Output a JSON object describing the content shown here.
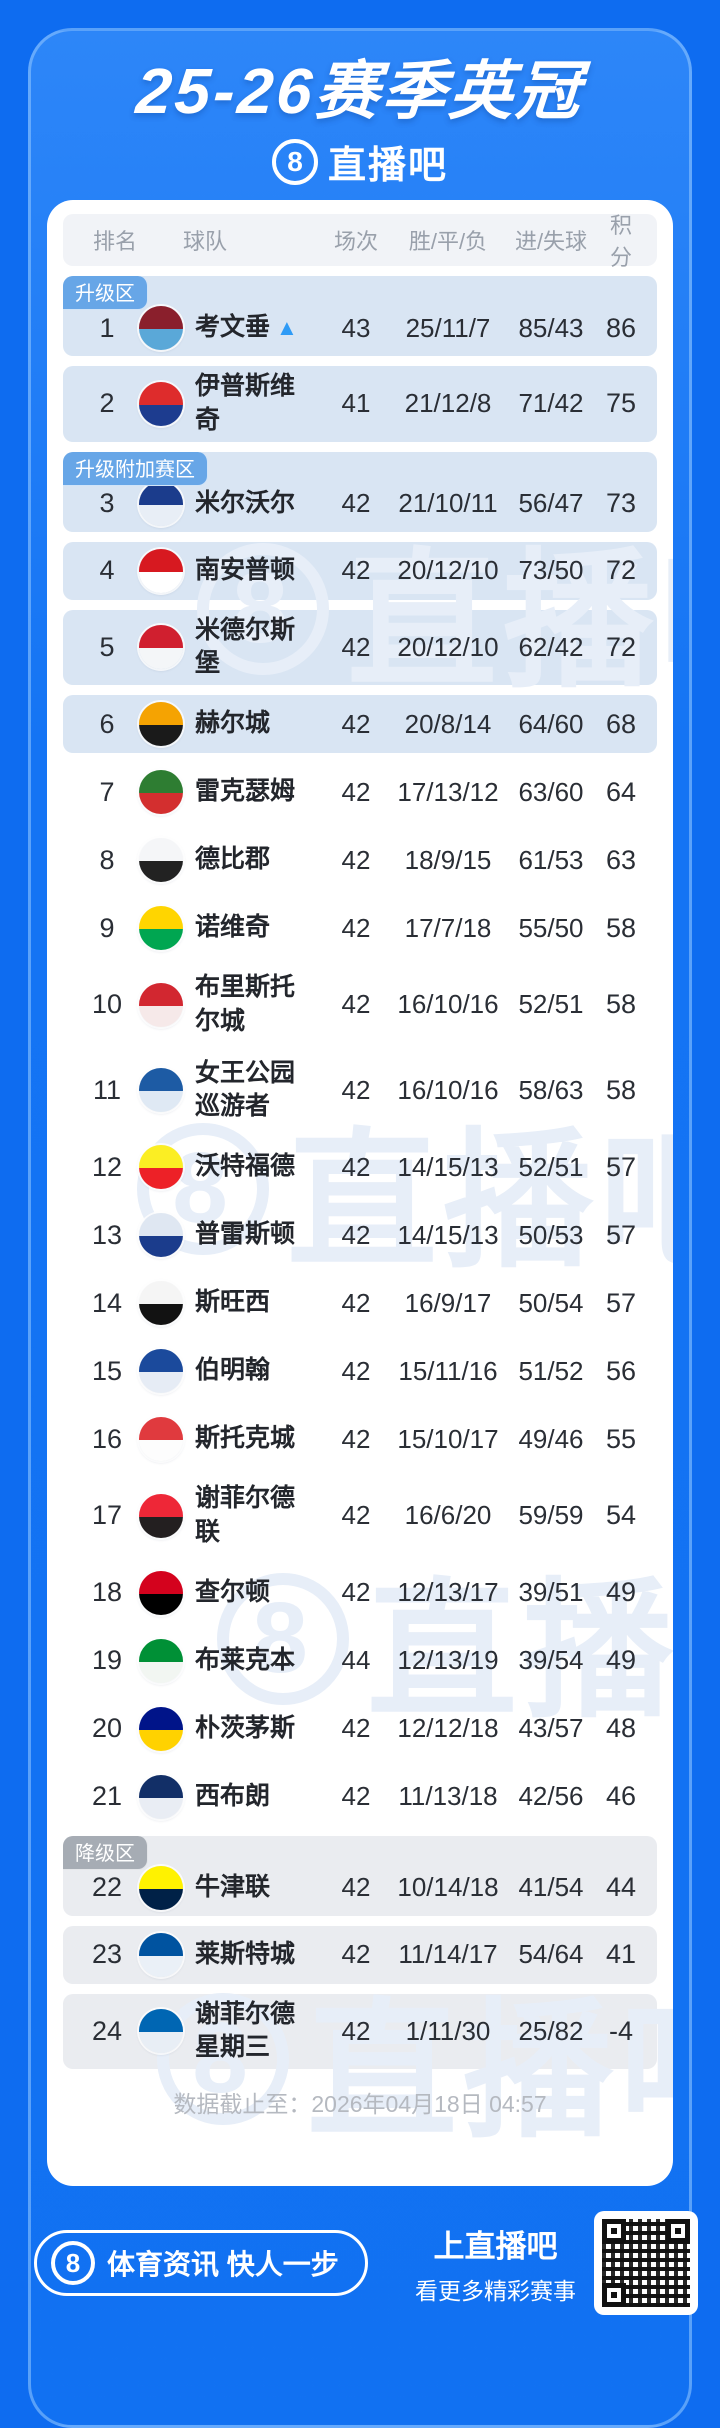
{
  "title": "25-26赛季英冠",
  "brand": {
    "logo_char": "8",
    "name": "直播吧"
  },
  "table": {
    "headers": [
      "排名",
      "球队",
      "场次",
      "胜/平/负",
      "进/失球",
      "积分"
    ],
    "rows": [
      {
        "rank": "1",
        "team": "考文垂",
        "arrow": "▲",
        "badge": "升级区",
        "zone": "promotion",
        "matches": "43",
        "record": "25/11/7",
        "goals": "85/43",
        "points": "86",
        "logo": [
          "#8a1f2c",
          "#5aa8d8"
        ]
      },
      {
        "rank": "2",
        "team": "伊普斯维奇",
        "zone": "promotion",
        "matches": "41",
        "record": "21/12/8",
        "goals": "71/42",
        "points": "75",
        "logo": [
          "#de2c2c",
          "#1d3c8f"
        ]
      },
      {
        "rank": "3",
        "team": "米尔沃尔",
        "badge": "升级附加赛区",
        "zone": "playoff",
        "matches": "42",
        "record": "21/10/11",
        "goals": "56/47",
        "points": "73",
        "logo": [
          "#1b3c8c",
          "#e8eef6"
        ]
      },
      {
        "rank": "4",
        "team": "南安普顿",
        "zone": "playoff",
        "matches": "42",
        "record": "20/12/10",
        "goals": "73/50",
        "points": "72",
        "logo": [
          "#d71920",
          "#ffffff"
        ]
      },
      {
        "rank": "5",
        "team": "米德尔斯堡",
        "zone": "playoff",
        "matches": "42",
        "record": "20/12/10",
        "goals": "62/42",
        "points": "72",
        "logo": [
          "#d01f2f",
          "#f4f6f8"
        ]
      },
      {
        "rank": "6",
        "team": "赫尔城",
        "zone": "playoff",
        "matches": "42",
        "record": "20/8/14",
        "goals": "64/60",
        "points": "68",
        "logo": [
          "#f5a302",
          "#1a1a1a"
        ]
      },
      {
        "rank": "7",
        "team": "雷克瑟姆",
        "zone": "none",
        "matches": "42",
        "record": "17/13/12",
        "goals": "63/60",
        "points": "64",
        "logo": [
          "#2e7d32",
          "#d32f2f"
        ]
      },
      {
        "rank": "8",
        "team": "德比郡",
        "zone": "none",
        "matches": "42",
        "record": "18/9/15",
        "goals": "61/53",
        "points": "63",
        "logo": [
          "#f5f6f8",
          "#222222"
        ]
      },
      {
        "rank": "9",
        "team": "诺维奇",
        "zone": "none",
        "matches": "42",
        "record": "17/7/18",
        "goals": "55/50",
        "points": "58",
        "logo": [
          "#ffd500",
          "#00a651"
        ]
      },
      {
        "rank": "10",
        "team": "布里斯托尔城",
        "zone": "none",
        "matches": "42",
        "record": "16/10/16",
        "goals": "52/51",
        "points": "58",
        "logo": [
          "#d22730",
          "#f6e9e9"
        ]
      },
      {
        "rank": "11",
        "team": "女王公园巡游者",
        "zone": "none",
        "matches": "42",
        "record": "16/10/16",
        "goals": "58/63",
        "points": "58",
        "logo": [
          "#1d5ba4",
          "#dfe9f4"
        ]
      },
      {
        "rank": "12",
        "team": "沃特福德",
        "zone": "none",
        "matches": "42",
        "record": "14/15/13",
        "goals": "52/51",
        "points": "57",
        "logo": [
          "#fbee23",
          "#ed2127"
        ]
      },
      {
        "rank": "13",
        "team": "普雷斯顿",
        "zone": "none",
        "matches": "42",
        "record": "14/15/13",
        "goals": "50/53",
        "points": "57",
        "logo": [
          "#dfe7f2",
          "#1b3c8c"
        ]
      },
      {
        "rank": "14",
        "team": "斯旺西",
        "zone": "none",
        "matches": "42",
        "record": "16/9/17",
        "goals": "50/54",
        "points": "57",
        "logo": [
          "#f5f5f5",
          "#121212"
        ]
      },
      {
        "rank": "15",
        "team": "伯明翰",
        "zone": "none",
        "matches": "42",
        "record": "15/11/16",
        "goals": "51/52",
        "points": "56",
        "logo": [
          "#1b4a9c",
          "#e6ecf5"
        ]
      },
      {
        "rank": "16",
        "team": "斯托克城",
        "zone": "none",
        "matches": "42",
        "record": "15/10/17",
        "goals": "49/46",
        "points": "55",
        "logo": [
          "#e03a3e",
          "#fdfdfd"
        ]
      },
      {
        "rank": "17",
        "team": "谢菲尔德联",
        "zone": "none",
        "matches": "42",
        "record": "16/6/20",
        "goals": "59/59",
        "points": "54",
        "logo": [
          "#ee2737",
          "#231f20"
        ]
      },
      {
        "rank": "18",
        "team": "查尔顿",
        "zone": "none",
        "matches": "42",
        "record": "12/13/17",
        "goals": "39/51",
        "points": "49",
        "logo": [
          "#d4021d",
          "#000000"
        ]
      },
      {
        "rank": "19",
        "team": "布莱克本",
        "zone": "none",
        "matches": "44",
        "record": "12/13/19",
        "goals": "39/54",
        "points": "49",
        "logo": [
          "#009036",
          "#f2f6f2"
        ]
      },
      {
        "rank": "20",
        "team": "朴茨茅斯",
        "zone": "none",
        "matches": "42",
        "record": "12/12/18",
        "goals": "43/57",
        "points": "48",
        "logo": [
          "#001489",
          "#ffd200"
        ]
      },
      {
        "rank": "21",
        "team": "西布朗",
        "zone": "none",
        "matches": "42",
        "record": "11/13/18",
        "goals": "42/56",
        "points": "46",
        "logo": [
          "#122f67",
          "#e9edf4"
        ]
      },
      {
        "rank": "22",
        "team": "牛津联",
        "badge": "降级区",
        "zone": "relegation",
        "matches": "42",
        "record": "10/14/18",
        "goals": "41/54",
        "points": "44",
        "logo": [
          "#fff200",
          "#002147"
        ]
      },
      {
        "rank": "23",
        "team": "莱斯特城",
        "zone": "relegation",
        "matches": "42",
        "record": "11/14/17",
        "goals": "54/64",
        "points": "41",
        "logo": [
          "#0053a0",
          "#eaf0f7"
        ]
      },
      {
        "rank": "24",
        "team": "谢菲尔德星期三",
        "zone": "relegation",
        "matches": "42",
        "record": "1/11/30",
        "goals": "25/82",
        "points": "-4",
        "logo": [
          "#0066b3",
          "#e8eef5"
        ]
      }
    ]
  },
  "footer_note": "数据截止至：2026年04月18日 04:57",
  "bottom_bar": {
    "slogan": "体育资讯 快人一步",
    "cta_title": "上直播吧",
    "cta_sub": "看更多精彩赛事",
    "qr_icon": "qr-code"
  },
  "colors": {
    "page_bg": "#0e6cf0",
    "row_highlight": "#d9e5f3",
    "relegation_bg": "#eaecf0",
    "badge_blue": "#67a6e7",
    "badge_gray": "#a6acb4",
    "arrow_blue": "#2f9bf6",
    "watermark": "#e7eef8"
  }
}
